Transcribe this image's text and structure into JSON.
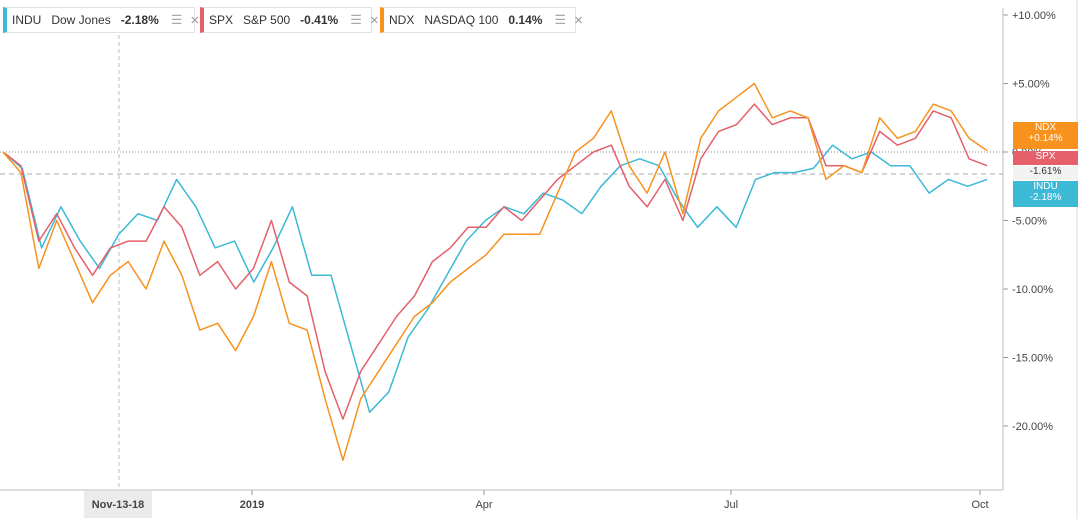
{
  "legend": [
    {
      "symbol": "INDU",
      "name": "Dow Jones",
      "change": "-2.18%",
      "color": "#3cb9d5"
    },
    {
      "symbol": "SPX",
      "name": "S&P 500",
      "change": "-0.41%",
      "color": "#e4606a"
    },
    {
      "symbol": "NDX",
      "name": "NASDAQ 100",
      "change": "0.14%",
      "color": "#f7921e"
    }
  ],
  "price_tags": [
    {
      "symbol": "NDX",
      "change": "+0.14%",
      "color": "#f7921e"
    },
    {
      "symbol": "SPX",
      "change": "",
      "color": "#e4606a"
    },
    {
      "symbol": "",
      "change": "-1.61%",
      "color": "#f2f2f2"
    },
    {
      "symbol": "INDU",
      "change": "-2.18%",
      "color": "#3cb9d5"
    }
  ],
  "crosshair_date": "Nov-13-18",
  "chart_data": {
    "type": "line",
    "x_ticks": [
      "2019",
      "Apr",
      "Jul",
      "Oct"
    ],
    "y_ticks": [
      "+10.00%",
      "+5.00%",
      "0.00%",
      "-5.00%",
      "-10.00%",
      "-15.00%",
      "-20.00%"
    ],
    "ylim": [
      -25,
      10
    ],
    "series": [
      {
        "name": "INDU",
        "color": "#3cb9d5",
        "values": [
          0,
          -1.2,
          -7,
          -4,
          -6.5,
          -8.5,
          -6,
          -4.5,
          -5,
          -2,
          -4,
          -7,
          -6.5,
          -9.5,
          -7,
          -4,
          -9,
          -9,
          -14,
          -19,
          -17.5,
          -13.5,
          -11.5,
          -9,
          -6.5,
          -5,
          -4,
          -4.5,
          -3,
          -3.5,
          -4.5,
          -2.5,
          -1,
          -0.5,
          -1,
          -3.5,
          -5.5,
          -4,
          -5.5,
          -2,
          -1.5,
          -1.5,
          -1.2,
          0.5,
          -0.5,
          0,
          -1,
          -1,
          -3,
          -2,
          -2.5,
          -2
        ]
      },
      {
        "name": "SPX",
        "color": "#e4606a",
        "values": [
          0,
          -1,
          -6.5,
          -4.5,
          -7,
          -9,
          -7,
          -6.5,
          -6.5,
          -4,
          -5.5,
          -9,
          -8,
          -10,
          -8.5,
          -5,
          -9.5,
          -10.5,
          -16,
          -19.5,
          -16,
          -14,
          -12,
          -10.5,
          -8,
          -7,
          -5.5,
          -5.5,
          -4,
          -5,
          -3.5,
          -2,
          -1,
          0,
          0.5,
          -2.5,
          -4,
          -2,
          -5,
          -0.5,
          1.5,
          2,
          3.5,
          2,
          2.5,
          2.5,
          -1,
          -1,
          -1.5,
          1.5,
          0.5,
          1,
          3,
          2.5,
          -0.5,
          -1
        ]
      },
      {
        "name": "NDX",
        "color": "#f7921e",
        "values": [
          0,
          -1.5,
          -8.5,
          -5,
          -8,
          -11,
          -9,
          -8,
          -10,
          -6.5,
          -9,
          -13,
          -12.5,
          -14.5,
          -12,
          -8,
          -12.5,
          -13,
          -18,
          -22.5,
          -18,
          -16,
          -14,
          -12,
          -11,
          -9.5,
          -8.5,
          -7.5,
          -6,
          -6,
          -6,
          -3,
          0,
          1,
          3,
          -1,
          -3,
          0,
          -4.5,
          1,
          3,
          4,
          5,
          2.5,
          3,
          2.5,
          -2,
          -1,
          -1.5,
          2.5,
          1,
          1.5,
          3.5,
          3,
          1,
          0.1
        ]
      }
    ]
  }
}
